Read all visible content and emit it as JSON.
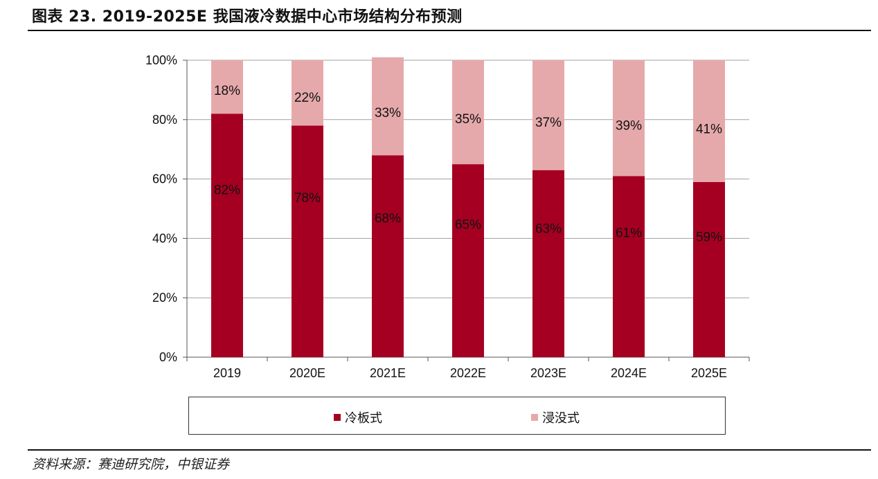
{
  "title": "图表 23. 2019-2025E 我国液冷数据中心市场结构分布预测",
  "source": "资料来源：赛迪研究院，中银证券",
  "chart_data": {
    "type": "bar",
    "stacked": true,
    "percent": true,
    "categories": [
      "2019",
      "2020E",
      "2021E",
      "2022E",
      "2023E",
      "2024E",
      "2025E"
    ],
    "series": [
      {
        "name": "冷板式",
        "color": "#a50021",
        "values": [
          82,
          78,
          68,
          65,
          63,
          61,
          59
        ],
        "labels": [
          "82%",
          "78%",
          "68%",
          "65%",
          "63%",
          "61%",
          "59%"
        ]
      },
      {
        "name": "浸没式",
        "color": "#e6a9ab",
        "values": [
          18,
          22,
          33,
          35,
          37,
          39,
          41
        ],
        "labels": [
          "18%",
          "22%",
          "33%",
          "35%",
          "37%",
          "39%",
          "41%"
        ]
      }
    ],
    "ylim": [
      0,
      100
    ],
    "yticks": [
      "0%",
      "20%",
      "40%",
      "60%",
      "80%",
      "100%"
    ],
    "grid": true,
    "legend_position": "bottom"
  }
}
